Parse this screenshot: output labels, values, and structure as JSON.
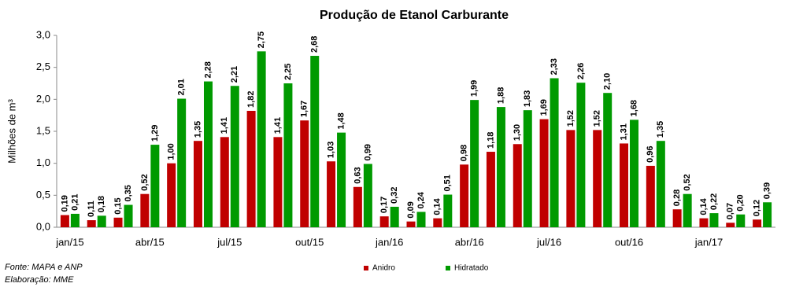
{
  "chart_data": {
    "type": "bar",
    "title": "Produção de Etanol Carburante",
    "y_label": "Milhões de m³",
    "categories": [
      "jan/15",
      null,
      null,
      "abr/15",
      null,
      null,
      "jul/15",
      null,
      null,
      "out/15",
      null,
      null,
      "jan/16",
      null,
      null,
      "abr/16",
      null,
      null,
      "jul/16",
      null,
      null,
      "out/16",
      null,
      null,
      "jan/17",
      null,
      null
    ],
    "series": [
      {
        "name": "Anidro",
        "color": "#c00000",
        "values": [
          0.19,
          0.11,
          0.15,
          0.52,
          1.0,
          1.35,
          1.41,
          1.82,
          1.41,
          1.67,
          1.03,
          0.63,
          0.17,
          0.09,
          0.14,
          0.98,
          1.18,
          1.3,
          1.69,
          1.52,
          1.52,
          1.31,
          0.96,
          0.28,
          0.14,
          0.07,
          0.12
        ],
        "value_labels": [
          "0,19",
          "0,11",
          "0,15",
          "0,52",
          "1,00",
          "1,35",
          "1,41",
          "1,82",
          "1,41",
          "1,67",
          "1,03",
          "0,63",
          "0,17",
          "0,09",
          "0,14",
          "0,98",
          "1,18",
          "1,30",
          "1,69",
          "1,52",
          "1,52",
          "1,31",
          "0,96",
          "0,28",
          "0,14",
          "0,07",
          "0,12"
        ]
      },
      {
        "name": "Hidratado",
        "color": "#009a00",
        "values": [
          0.21,
          0.18,
          0.35,
          1.29,
          2.01,
          2.28,
          2.21,
          2.75,
          2.25,
          2.68,
          1.48,
          0.99,
          0.32,
          0.24,
          0.51,
          1.99,
          1.88,
          1.83,
          2.33,
          2.26,
          2.1,
          1.68,
          1.35,
          0.52,
          0.22,
          0.2,
          0.39
        ],
        "value_labels": [
          "0,21",
          "0,18",
          "0,35",
          "1,29",
          "2,01",
          "2,28",
          "2,21",
          "2,75",
          "2,25",
          "2,68",
          "1,48",
          "0,99",
          "0,32",
          "0,24",
          "0,51",
          "1,99",
          "1,88",
          "1,83",
          "2,33",
          "2,26",
          "2,10",
          "1,68",
          "1,35",
          "0,52",
          "0,22",
          "0,20",
          "0,39"
        ]
      }
    ],
    "ylim": [
      0,
      3
    ],
    "yticks": [
      {
        "value": 0,
        "label": "0,0"
      },
      {
        "value": 0.5,
        "label": "0,5"
      },
      {
        "value": 1,
        "label": "1,0"
      },
      {
        "value": 1.5,
        "label": "1,5"
      },
      {
        "value": 2,
        "label": "2,0"
      },
      {
        "value": 2.5,
        "label": "2,5"
      },
      {
        "value": 3,
        "label": "3,0"
      }
    ],
    "grid": false,
    "legend": "bottom",
    "source": "Fonte: MAPA e ANP",
    "credit": "Elaboração: MME"
  }
}
